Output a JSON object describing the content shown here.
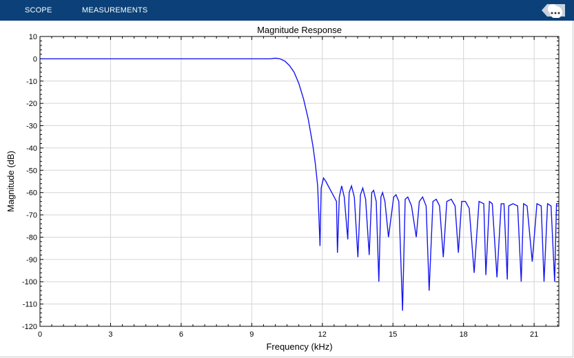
{
  "toolstrip": {
    "tabs": [
      {
        "label": "SCOPE"
      },
      {
        "label": "MEASUREMENTS"
      }
    ],
    "collapse_icon": "ellipsis-icon",
    "background": "#0b4178"
  },
  "chart_data": {
    "type": "line",
    "title": "Magnitude Response",
    "xlabel": "Frequency (kHz)",
    "ylabel": "Magnitude (dB)",
    "xlim": [
      0,
      22.05
    ],
    "ylim": [
      -120,
      10
    ],
    "x_ticks": [
      0,
      3,
      6,
      9,
      12,
      15,
      18,
      21
    ],
    "y_ticks": [
      10,
      0,
      -10,
      -20,
      -30,
      -40,
      -50,
      -60,
      -70,
      -80,
      -90,
      -100,
      -110,
      -120
    ],
    "grid": true,
    "line_color": "#1515f0",
    "series": [
      {
        "x": [
          0,
          9.8,
          10.0,
          10.2,
          10.4,
          10.6,
          10.8,
          11.0,
          11.2,
          11.4,
          11.6,
          11.7,
          11.8,
          11.85,
          11.9,
          11.95,
          12.05,
          12.15,
          12.25,
          12.4,
          12.6,
          12.64,
          12.72,
          12.82,
          12.93,
          13.08,
          13.14,
          13.24,
          13.36,
          13.51,
          13.62,
          13.72,
          13.84,
          13.99,
          14.1,
          14.18,
          14.29,
          14.4,
          14.49,
          14.56,
          14.66,
          14.81,
          15.03,
          15.13,
          15.25,
          15.41,
          15.52,
          15.63,
          15.79,
          15.99,
          16.12,
          16.26,
          16.41,
          16.54,
          16.7,
          16.84,
          16.98,
          17.14,
          17.29,
          17.48,
          17.64,
          17.78,
          17.92,
          18.08,
          18.24,
          18.45,
          18.66,
          18.86,
          18.95,
          19.1,
          19.22,
          19.42,
          19.6,
          19.72,
          19.86,
          19.92,
          20.1,
          20.3,
          20.45,
          20.55,
          20.7,
          20.92,
          21.12,
          21.3,
          21.42,
          21.57,
          21.72,
          21.87,
          21.95,
          22.05
        ],
        "y": [
          0,
          0,
          0.3,
          0,
          -1,
          -3,
          -6,
          -11,
          -18,
          -27,
          -39,
          -47,
          -57,
          -70,
          -84,
          -58,
          -53.5,
          -55,
          -57,
          -60,
          -64,
          -87,
          -62,
          -57,
          -62,
          -81,
          -60,
          -57,
          -62,
          -89,
          -61,
          -58,
          -63,
          -88,
          -60,
          -59,
          -64,
          -100,
          -62,
          -60,
          -64,
          -80,
          -62,
          -61,
          -64,
          -113,
          -63,
          -62,
          -66,
          -80,
          -64,
          -62,
          -66,
          -104,
          -64,
          -63,
          -66,
          -89,
          -64,
          -63,
          -66,
          -87,
          -64,
          -64,
          -67,
          -96,
          -64,
          -65,
          -97,
          -64,
          -65,
          -98,
          -65,
          -65,
          -99,
          -66,
          -65,
          -66,
          -100,
          -65,
          -66,
          -91,
          -65,
          -66,
          -100,
          -65,
          -66,
          -100,
          -65,
          -65
        ]
      }
    ]
  }
}
